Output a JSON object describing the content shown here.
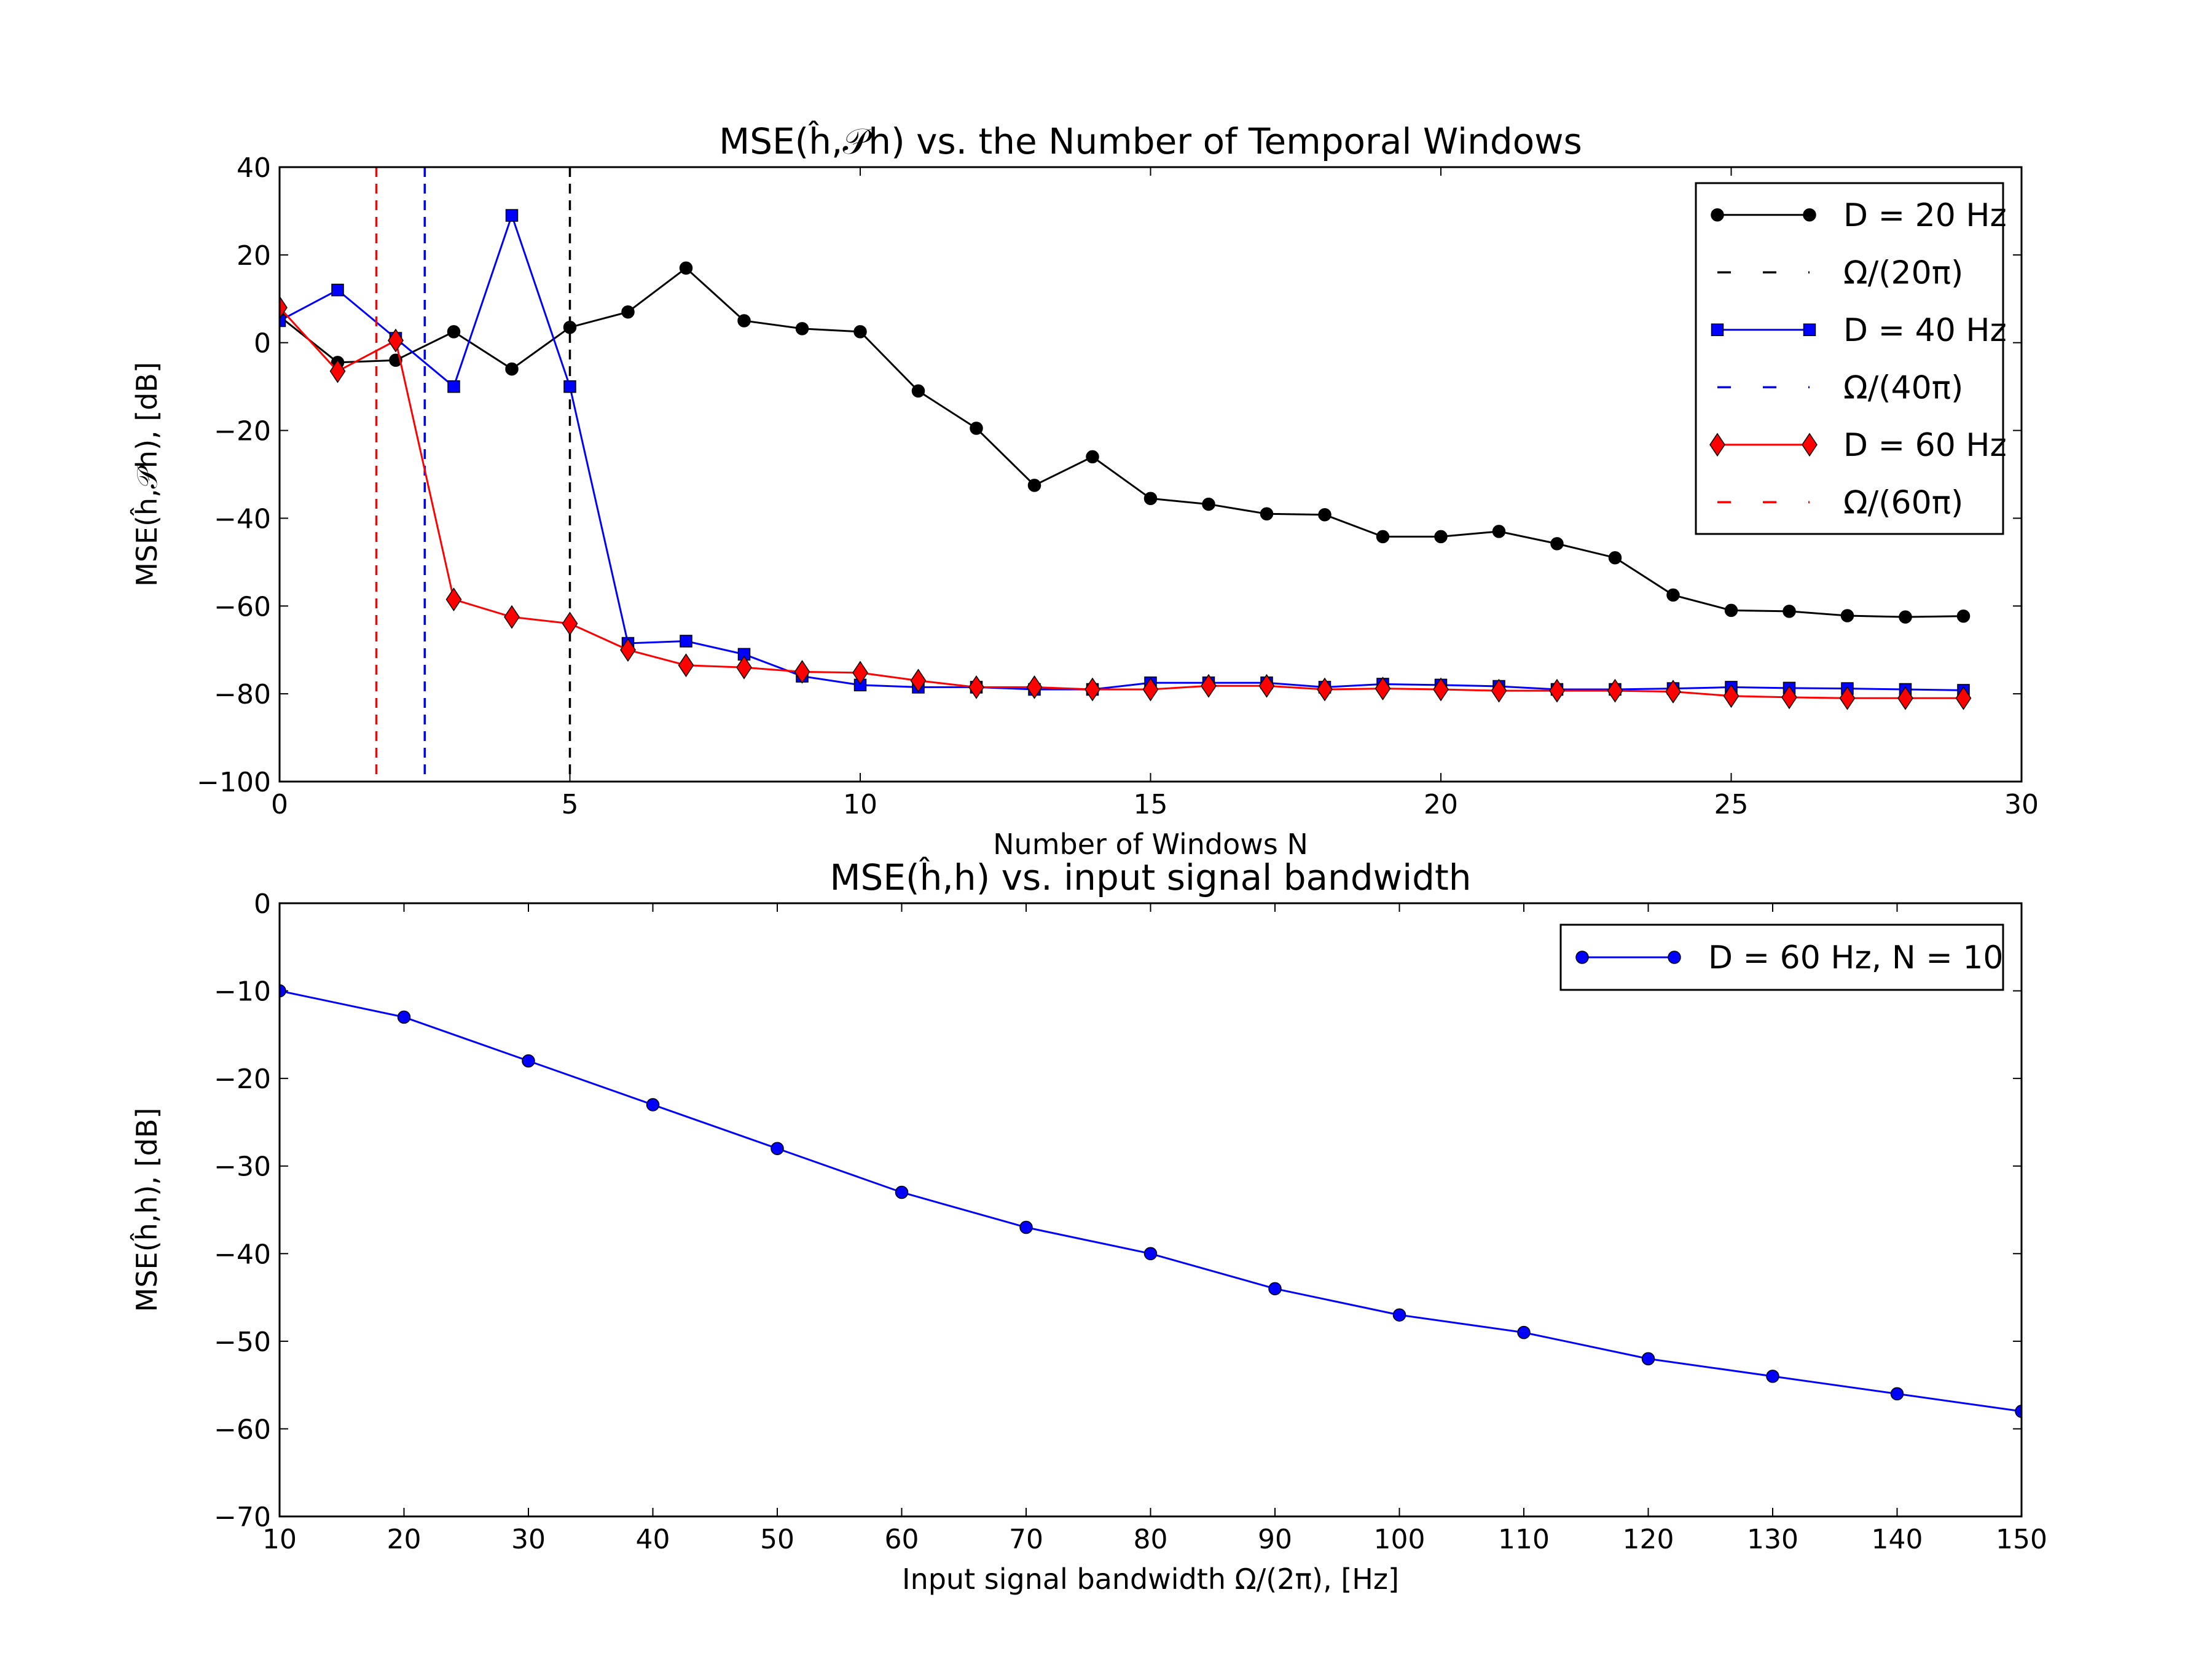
{
  "chart_data": [
    {
      "type": "line",
      "title": "MSE(ĥ,𝒫h) vs. the Number of Temporal Windows",
      "xlabel": "Number of Windows N",
      "ylabel": "MSE(ĥ,𝒫h), [dB]",
      "xlim": [
        0,
        30
      ],
      "ylim": [
        -100,
        40
      ],
      "xticks": [
        0,
        5,
        10,
        15,
        20,
        25,
        30
      ],
      "yticks": [
        -100,
        -80,
        -60,
        -40,
        -20,
        0,
        20,
        40
      ],
      "grid": false,
      "legend_position": "top-right",
      "series": [
        {
          "name": "D = 20 Hz",
          "color": "#000000",
          "marker": "circle",
          "x": [
            0,
            1,
            2,
            3,
            4,
            5,
            6,
            7,
            8,
            9,
            10,
            11,
            12,
            13,
            14,
            15,
            16,
            17,
            18,
            19,
            20,
            21,
            22,
            23,
            24,
            25,
            26,
            27,
            28,
            29
          ],
          "values": [
            6,
            -4.5,
            -4,
            2.5,
            -6,
            3.5,
            7,
            17,
            5,
            3.2,
            2.5,
            -11,
            -19.5,
            -32.5,
            -26,
            -35.5,
            -36.8,
            -39,
            -39.2,
            -44.2,
            -44.2,
            -43,
            -45.8,
            -49,
            -57.5,
            -61,
            -61.2,
            -62.2,
            -62.5,
            -62.3
          ]
        },
        {
          "name": "Ω/(20π)",
          "color": "#000000",
          "style": "dashed-vertical",
          "x_value": 5
        },
        {
          "name": "D = 40 Hz",
          "color": "#0000ff",
          "marker": "square",
          "x": [
            0,
            1,
            2,
            3,
            4,
            5,
            6,
            7,
            8,
            9,
            10,
            11,
            12,
            13,
            14,
            15,
            16,
            17,
            18,
            19,
            20,
            21,
            22,
            23,
            24,
            25,
            26,
            27,
            28,
            29
          ],
          "values": [
            5,
            12,
            1,
            -10,
            29,
            -10,
            -68.5,
            -68,
            -71,
            -76,
            -78,
            -78.5,
            -78.5,
            -79,
            -79,
            -77.5,
            -77.5,
            -77.5,
            -78.5,
            -77.8,
            -78,
            -78.3,
            -79,
            -79,
            -78.8,
            -78.5,
            -78.7,
            -78.8,
            -79,
            -79.2
          ]
        },
        {
          "name": "Ω/(40π)",
          "color": "#0000ff",
          "style": "dashed-vertical",
          "x_value": 2.5
        },
        {
          "name": "D = 60 Hz",
          "color": "#ff0000",
          "marker": "diamond",
          "x": [
            0,
            1,
            2,
            3,
            4,
            5,
            6,
            7,
            8,
            9,
            10,
            11,
            12,
            13,
            14,
            15,
            16,
            17,
            18,
            19,
            20,
            21,
            22,
            23,
            24,
            25,
            26,
            27,
            28,
            29
          ],
          "values": [
            8,
            -6.5,
            0.5,
            -58.5,
            -62.5,
            -64,
            -70,
            -73.5,
            -74,
            -75,
            -75.2,
            -77,
            -78.5,
            -78.5,
            -79,
            -79,
            -78.2,
            -78.2,
            -79,
            -78.8,
            -79,
            -79.3,
            -79.3,
            -79.3,
            -79.5,
            -80.5,
            -80.8,
            -81,
            -81,
            -81
          ]
        },
        {
          "name": "Ω/(60π)",
          "color": "#ff0000",
          "style": "dashed-vertical",
          "x_value": 1.667
        }
      ]
    },
    {
      "type": "line",
      "title": "MSE(ĥ,h) vs. input signal bandwidth",
      "xlabel": "Input signal bandwidth Ω/(2π), [Hz]",
      "ylabel": "MSE(ĥ,h), [dB]",
      "xlim": [
        10,
        150
      ],
      "ylim": [
        -70,
        0
      ],
      "xticks": [
        10,
        20,
        30,
        40,
        50,
        60,
        70,
        80,
        90,
        100,
        110,
        120,
        130,
        140,
        150
      ],
      "yticks": [
        -70,
        -60,
        -50,
        -40,
        -30,
        -20,
        -10,
        0
      ],
      "grid": false,
      "legend_position": "top-right",
      "series": [
        {
          "name": "D = 60 Hz, N = 10",
          "color": "#0000ff",
          "marker": "circle",
          "x": [
            10,
            20,
            30,
            40,
            50,
            60,
            70,
            80,
            90,
            100,
            110,
            120,
            130,
            140,
            150
          ],
          "values": [
            -10,
            -13,
            -18,
            -23,
            -28,
            -33,
            -37,
            -40,
            -44,
            -47,
            -49,
            -52,
            -54,
            -56,
            -58
          ]
        }
      ]
    }
  ]
}
